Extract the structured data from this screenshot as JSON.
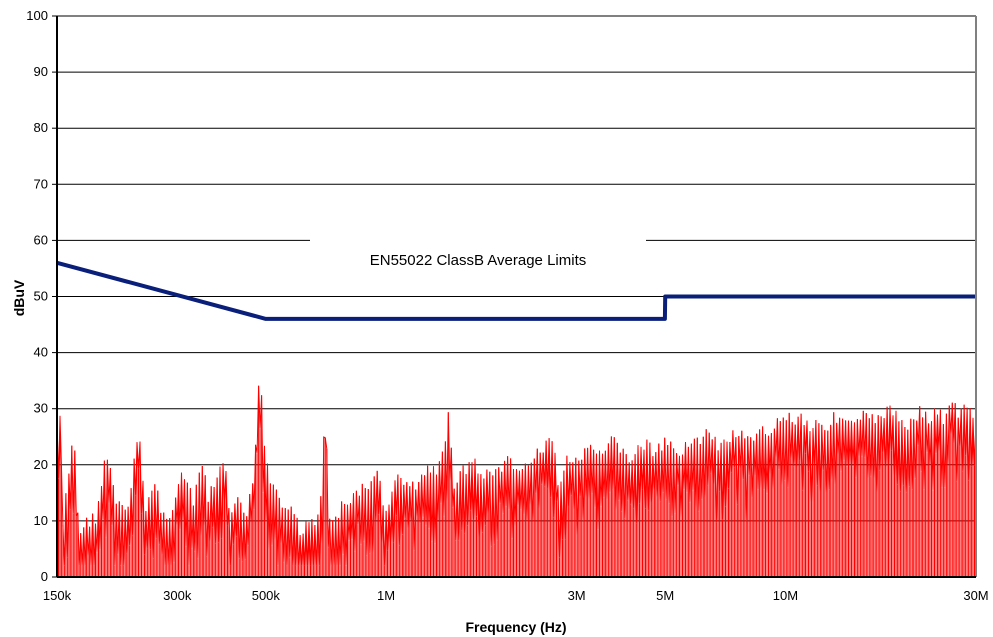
{
  "chart_data": {
    "type": "line",
    "title": "",
    "xlabel": "Frequency (Hz)",
    "ylabel": "dBuV",
    "x_scale": "log",
    "xlim": [
      150000,
      30000000
    ],
    "ylim": [
      0,
      100
    ],
    "grid": true,
    "y_ticks": [
      0,
      10,
      20,
      30,
      40,
      50,
      60,
      70,
      80,
      90,
      100
    ],
    "x_ticks": [
      {
        "value": 150000,
        "label": "150k"
      },
      {
        "value": 300000,
        "label": "300k"
      },
      {
        "value": 500000,
        "label": "500k"
      },
      {
        "value": 1000000,
        "label": "1M"
      },
      {
        "value": 3000000,
        "label": "3M"
      },
      {
        "value": 5000000,
        "label": "5M"
      },
      {
        "value": 10000000,
        "label": "10M"
      },
      {
        "value": 30000000,
        "label": "30M"
      }
    ],
    "annotation": "EN55022 ClassB Average Limits",
    "colors": {
      "limit": "#0a1f7a",
      "measurement": "#ff0000",
      "grid": "#000000",
      "frame": "#808080"
    },
    "series": [
      {
        "style": "limit",
        "points": [
          [
            150000,
            56
          ],
          [
            500000,
            46
          ],
          [
            4990000,
            46
          ],
          [
            5000000,
            50
          ],
          [
            30000000,
            50
          ]
        ]
      },
      {
        "style": "measurement",
        "peaks": [
          [
            155000,
            10
          ],
          [
            163000,
            24
          ],
          [
            166000,
            25
          ],
          [
            170000,
            9
          ],
          [
            178000,
            11
          ],
          [
            188000,
            12
          ],
          [
            198000,
            22
          ],
          [
            203000,
            22
          ],
          [
            210000,
            14
          ],
          [
            225000,
            13
          ],
          [
            240000,
            27
          ],
          [
            250000,
            14
          ],
          [
            265000,
            18
          ],
          [
            275000,
            12
          ],
          [
            290000,
            13
          ],
          [
            310000,
            20
          ],
          [
            330000,
            14
          ],
          [
            345000,
            22
          ],
          [
            360000,
            15
          ],
          [
            380000,
            20
          ],
          [
            395000,
            21
          ],
          [
            405000,
            13
          ],
          [
            425000,
            15
          ],
          [
            440000,
            12
          ],
          [
            450000,
            13
          ],
          [
            468000,
            20
          ],
          [
            482000,
            38.5
          ],
          [
            495000,
            25
          ],
          [
            510000,
            19
          ],
          [
            530000,
            16
          ],
          [
            555000,
            12
          ],
          [
            580000,
            14
          ],
          [
            610000,
            9
          ],
          [
            640000,
            12
          ],
          [
            670000,
            11
          ],
          [
            690000,
            17
          ],
          [
            705000,
            33
          ],
          [
            720000,
            12
          ],
          [
            750000,
            12
          ],
          [
            780000,
            14
          ],
          [
            820000,
            15
          ],
          [
            860000,
            17
          ],
          [
            900000,
            16
          ],
          [
            950000,
            21
          ],
          [
            1000000,
            12
          ],
          [
            1050000,
            18
          ],
          [
            1100000,
            19
          ],
          [
            1150000,
            17
          ],
          [
            1200000,
            18
          ],
          [
            1250000,
            20
          ],
          [
            1300000,
            21
          ],
          [
            1350000,
            20
          ],
          [
            1400000,
            24
          ],
          [
            1430000,
            30.5
          ],
          [
            1480000,
            18
          ],
          [
            1550000,
            20
          ],
          [
            1650000,
            22
          ],
          [
            1750000,
            19
          ],
          [
            1850000,
            20
          ],
          [
            1950000,
            21
          ],
          [
            2050000,
            22
          ],
          [
            2150000,
            20
          ],
          [
            2250000,
            21
          ],
          [
            2400000,
            23
          ],
          [
            2500000,
            24
          ],
          [
            2600000,
            27
          ],
          [
            2700000,
            18
          ],
          [
            2850000,
            22
          ],
          [
            3000000,
            22
          ],
          [
            3150000,
            23
          ],
          [
            3300000,
            24
          ],
          [
            3500000,
            22
          ],
          [
            3700000,
            26
          ],
          [
            3900000,
            24
          ],
          [
            4100000,
            22
          ],
          [
            4300000,
            24
          ],
          [
            4500000,
            25
          ],
          [
            4700000,
            23
          ],
          [
            5000000,
            25
          ],
          [
            5200000,
            24
          ],
          [
            5500000,
            24
          ],
          [
            5800000,
            26
          ],
          [
            6100000,
            25
          ],
          [
            6400000,
            27
          ],
          [
            6800000,
            24
          ],
          [
            7200000,
            26
          ],
          [
            7600000,
            27
          ],
          [
            8000000,
            25
          ],
          [
            8400000,
            26
          ],
          [
            8800000,
            27
          ],
          [
            9300000,
            28
          ],
          [
            9700000,
            29
          ],
          [
            10000000,
            30.5
          ],
          [
            10500000,
            29
          ],
          [
            11000000,
            30
          ],
          [
            11500000,
            28
          ],
          [
            12000000,
            29
          ],
          [
            12700000,
            28
          ],
          [
            13400000,
            30
          ],
          [
            14000000,
            29
          ],
          [
            14800000,
            28
          ],
          [
            15500000,
            30
          ],
          [
            16300000,
            29
          ],
          [
            17200000,
            30
          ],
          [
            18000000,
            31
          ],
          [
            19000000,
            30
          ],
          [
            20000000,
            28
          ],
          [
            21000000,
            30
          ],
          [
            22000000,
            31
          ],
          [
            23000000,
            29
          ],
          [
            24000000,
            31
          ],
          [
            25000000,
            29
          ],
          [
            26000000,
            33.5
          ],
          [
            27000000,
            30
          ],
          [
            28000000,
            31
          ],
          [
            29000000,
            31.5
          ],
          [
            30000000,
            29
          ]
        ]
      }
    ]
  }
}
